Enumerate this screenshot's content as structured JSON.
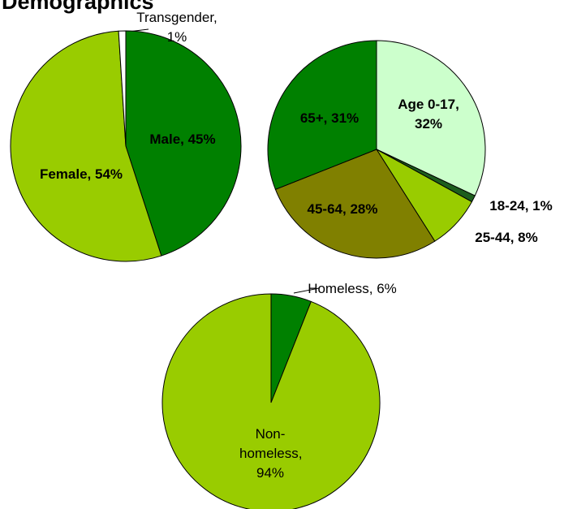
{
  "title": "Demographics",
  "chart_data": [
    {
      "type": "pie",
      "values": [
        45,
        54,
        1
      ],
      "value_labels": [
        "Male, 45%",
        "Female, 54%",
        "Transgender, 1%"
      ],
      "colors": [
        "#008000",
        "#99cc00",
        "#ffffff"
      ]
    },
    {
      "type": "pie",
      "values": [
        32,
        1,
        8,
        28,
        31
      ],
      "value_labels": [
        "Age 0-17, 32%",
        "18-24, 1%",
        "25-44, 8%",
        "45-64, 28%",
        "65+, 31%"
      ],
      "colors": [
        "#ccffcc",
        "#1d5e1d",
        "#99cc00",
        "#808000",
        "#008000"
      ]
    },
    {
      "type": "pie",
      "values": [
        6,
        94
      ],
      "value_labels": [
        "Homeless, 6%",
        "Non-homeless, 94%"
      ],
      "colors": [
        "#008000",
        "#99cc00"
      ]
    }
  ]
}
